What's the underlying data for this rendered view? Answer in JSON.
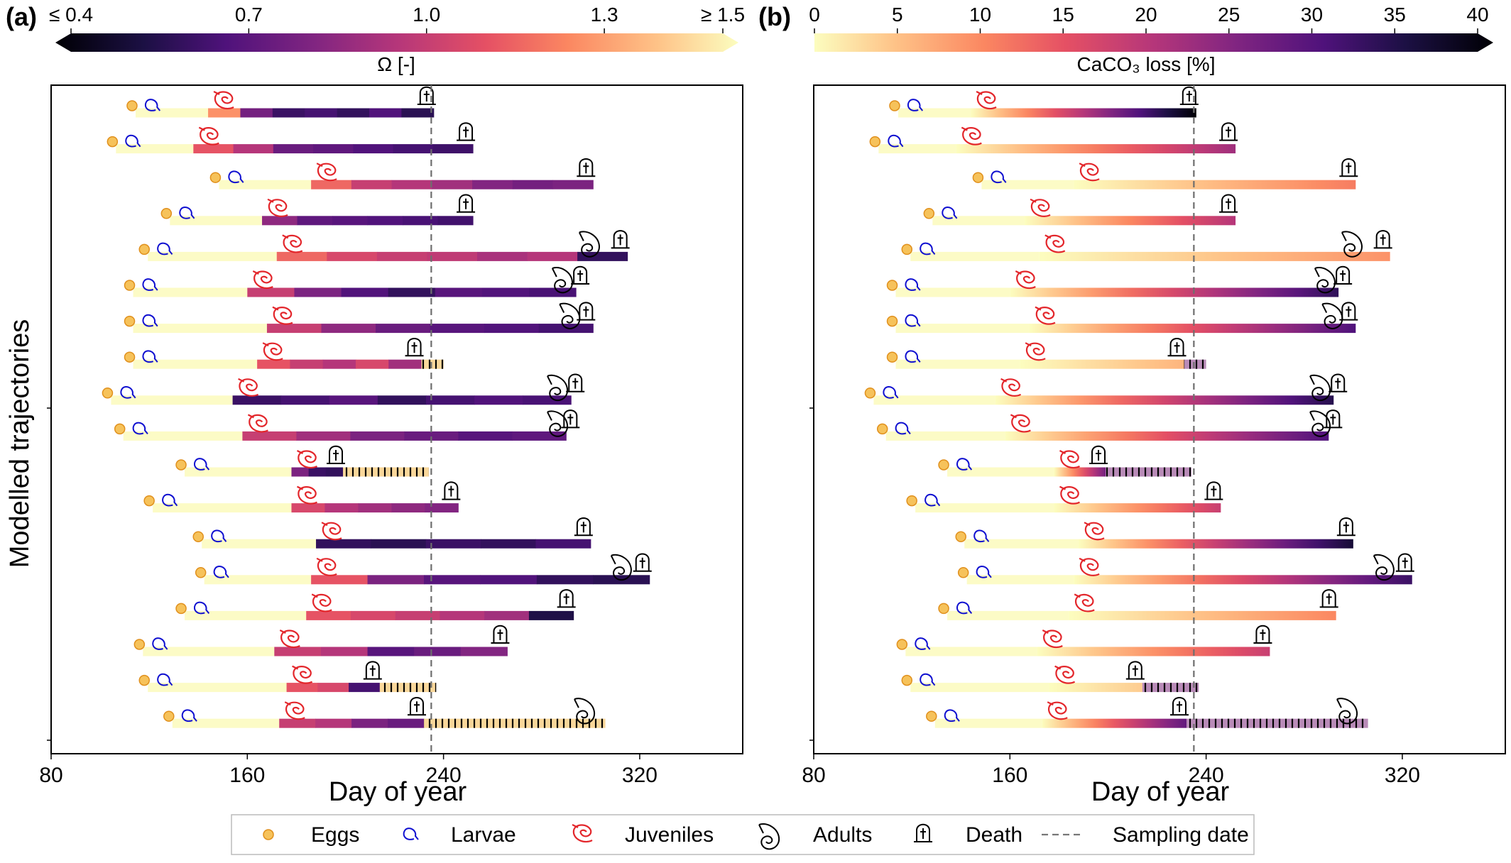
{
  "chart_data": [
    {
      "panel": "(a)",
      "type": "bar",
      "orientation": "horizontal",
      "title": "",
      "xlabel": "Day of year",
      "ylabel": "Modelled trajectories",
      "xlim": [
        80,
        362
      ],
      "xticks": [
        80,
        160,
        240,
        320
      ],
      "sampling_date": 235,
      "colorbar": {
        "label": "Ω [-]",
        "range": [
          0.4,
          1.5
        ],
        "ticks": [
          "≤ 0.4",
          "0.7",
          "1.0",
          "1.3",
          "≥ 1.5"
        ],
        "tick_values": [
          0.4,
          0.7,
          1.0,
          1.3,
          1.5
        ],
        "colormap": "magma",
        "extend": "both"
      },
      "trajectories": [
        {
          "egg": 113,
          "larva": 118,
          "juvenile": 144,
          "adult": null,
          "death": 236,
          "end": 236,
          "omega": [
            1.25,
            0.78,
            0.62,
            0.65,
            0.6,
            0.68,
            0.58
          ]
        },
        {
          "egg": 105,
          "larva": 110,
          "juvenile": 138,
          "adult": null,
          "death": 252,
          "end": 252,
          "omega": [
            1.1,
            0.95,
            0.75,
            0.72,
            0.68,
            0.65,
            0.63
          ]
        },
        {
          "egg": 147,
          "larva": 152,
          "juvenile": 186,
          "adult": null,
          "death": 301,
          "end": 301,
          "omega": [
            1.15,
            1.0,
            0.95,
            0.9,
            0.82,
            0.78,
            0.8
          ]
        },
        {
          "egg": 127,
          "larva": 132,
          "juvenile": 166,
          "adult": null,
          "death": 252,
          "end": 252,
          "omega": [
            0.85,
            0.72,
            0.7,
            0.68,
            0.66,
            0.64
          ]
        },
        {
          "egg": 118,
          "larva": 123,
          "juvenile": 172,
          "adult": 300,
          "death": 315,
          "end": 315,
          "omega": [
            1.15,
            1.05,
            1.0,
            0.98,
            0.92,
            0.95,
            0.6
          ]
        },
        {
          "egg": 112,
          "larva": 117,
          "juvenile": 160,
          "adult": 289,
          "death": 294,
          "end": 294,
          "omega": [
            1.0,
            0.8,
            0.68,
            0.6,
            0.7,
            0.68,
            0.66
          ]
        },
        {
          "egg": 112,
          "larva": 117,
          "juvenile": 168,
          "adult": 292,
          "death": 301,
          "end": 301,
          "omega": [
            1.0,
            0.85,
            0.75,
            0.7,
            0.68,
            0.65
          ]
        },
        {
          "egg": 112,
          "larva": 117,
          "juvenile": 164,
          "adult": null,
          "death": 231,
          "end": 240,
          "omega": [
            1.1,
            1.0,
            0.95,
            1.05,
            0.9
          ]
        },
        {
          "egg": 103,
          "larva": 108,
          "juvenile": 154,
          "adult": 287,
          "death": 292,
          "end": 292,
          "omega": [
            0.62,
            0.65,
            0.7,
            0.6,
            0.65,
            0.68,
            0.66
          ]
        },
        {
          "egg": 108,
          "larva": 113,
          "juvenile": 158,
          "adult": 287,
          "death": 290,
          "end": 290,
          "omega": [
            1.0,
            0.9,
            0.8,
            0.75,
            0.7,
            0.72
          ]
        },
        {
          "egg": 133,
          "larva": 138,
          "juvenile": 178,
          "adult": null,
          "death": 199,
          "end": 234,
          "omega": [
            0.8,
            0.62,
            0.6
          ]
        },
        {
          "egg": 120,
          "larva": 125,
          "juvenile": 178,
          "adult": null,
          "death": 246,
          "end": 246,
          "omega": [
            1.05,
            0.95,
            0.9,
            0.85,
            0.82
          ]
        },
        {
          "egg": 140,
          "larva": 145,
          "juvenile": 188,
          "adult": null,
          "death": 300,
          "end": 300,
          "omega": [
            0.6,
            0.58,
            0.62,
            0.6,
            0.65
          ]
        },
        {
          "egg": 141,
          "larva": 146,
          "juvenile": 186,
          "adult": 313,
          "death": 324,
          "end": 324,
          "omega": [
            1.1,
            0.8,
            0.7,
            0.68,
            0.6,
            0.58
          ]
        },
        {
          "egg": 133,
          "larva": 138,
          "juvenile": 184,
          "adult": null,
          "death": 293,
          "end": 293,
          "omega": [
            1.1,
            1.05,
            1.0,
            0.95,
            0.9,
            0.55
          ]
        },
        {
          "egg": 116,
          "larva": 121,
          "juvenile": 171,
          "adult": null,
          "death": 266,
          "end": 266,
          "omega": [
            1.0,
            0.95,
            0.7,
            0.75,
            0.82
          ]
        },
        {
          "egg": 118,
          "larva": 123,
          "juvenile": 176,
          "adult": null,
          "death": 214,
          "end": 237,
          "omega": [
            1.1,
            1.05,
            0.65
          ]
        },
        {
          "egg": 128,
          "larva": 133,
          "juvenile": 173,
          "adult": 298,
          "death": 232,
          "end": 306,
          "omega": [
            1.0,
            0.95,
            0.8,
            0.75
          ]
        }
      ]
    },
    {
      "panel": "(b)",
      "type": "bar",
      "orientation": "horizontal",
      "title": "",
      "xlabel": "Day of year",
      "ylabel": "",
      "xlim": [
        80,
        362
      ],
      "xticks": [
        80,
        160,
        240,
        320
      ],
      "sampling_date": 235,
      "colorbar": {
        "label": "CaCO₃ loss [%]",
        "range": [
          0,
          40
        ],
        "ticks": [
          "0",
          "5",
          "10",
          "15",
          "20",
          "25",
          "30",
          "35",
          "40"
        ],
        "tick_values": [
          0,
          5,
          10,
          15,
          20,
          25,
          30,
          35,
          40
        ],
        "colormap": "magma_r",
        "extend": "max"
      },
      "trajectories": [
        {
          "egg": 113,
          "larva": 118,
          "start_loss": 144,
          "death": 236,
          "end": 236,
          "final_loss": 40
        },
        {
          "egg": 105,
          "larva": 110,
          "start_loss": 138,
          "death": 252,
          "end": 252,
          "final_loss": 22
        },
        {
          "egg": 147,
          "larva": 152,
          "start_loss": 186,
          "death": 301,
          "end": 301,
          "final_loss": 11
        },
        {
          "egg": 127,
          "larva": 132,
          "start_loss": 166,
          "death": 252,
          "end": 252,
          "final_loss": 20
        },
        {
          "egg": 118,
          "larva": 123,
          "start_loss": 172,
          "adult": 300,
          "death": 315,
          "end": 315,
          "final_loss": 9
        },
        {
          "egg": 112,
          "larva": 117,
          "start_loss": 160,
          "adult": 289,
          "death": 294,
          "end": 294,
          "final_loss": 33
        },
        {
          "egg": 112,
          "larva": 117,
          "start_loss": 168,
          "adult": 292,
          "death": 301,
          "end": 301,
          "final_loss": 30
        },
        {
          "egg": 112,
          "larva": 117,
          "start_loss": 164,
          "death": 231,
          "end": 240,
          "final_loss": 6
        },
        {
          "egg": 103,
          "larva": 108,
          "start_loss": 154,
          "adult": 287,
          "death": 292,
          "end": 292,
          "final_loss": 34
        },
        {
          "egg": 108,
          "larva": 113,
          "start_loss": 158,
          "adult": 287,
          "death": 290,
          "end": 290,
          "final_loss": 30
        },
        {
          "egg": 133,
          "larva": 138,
          "start_loss": 178,
          "death": 199,
          "end": 234,
          "final_loss": 26
        },
        {
          "egg": 120,
          "larva": 125,
          "start_loss": 178,
          "death": 246,
          "end": 246,
          "final_loss": 18
        },
        {
          "egg": 140,
          "larva": 145,
          "start_loss": 188,
          "death": 300,
          "end": 300,
          "final_loss": 36
        },
        {
          "egg": 141,
          "larva": 146,
          "start_loss": 186,
          "adult": 313,
          "death": 324,
          "end": 324,
          "final_loss": 32
        },
        {
          "egg": 133,
          "larva": 138,
          "start_loss": 184,
          "death": 293,
          "end": 293,
          "final_loss": 10
        },
        {
          "egg": 116,
          "larva": 121,
          "start_loss": 171,
          "death": 266,
          "end": 266,
          "final_loss": 18
        },
        {
          "egg": 118,
          "larva": 123,
          "start_loss": 176,
          "death": 214,
          "end": 237,
          "final_loss": 4
        },
        {
          "egg": 128,
          "larva": 133,
          "start_loss": 173,
          "adult": 298,
          "death": 232,
          "end": 306,
          "final_loss": 28
        }
      ]
    }
  ],
  "legend": {
    "items": [
      {
        "label": "Eggs",
        "icon": "egg-icon",
        "color": "#f2a73a"
      },
      {
        "label": "Larvae",
        "icon": "larva-icon",
        "color": "#1010d0"
      },
      {
        "label": "Juveniles",
        "icon": "juvenile-icon",
        "color": "#e3262b"
      },
      {
        "label": "Adults",
        "icon": "adult-icon",
        "color": "#000000"
      },
      {
        "label": "Death",
        "icon": "tombstone-icon",
        "color": "#000000"
      },
      {
        "label": "Sampling date",
        "icon": "dashed-line-icon",
        "color": "#777777"
      }
    ]
  },
  "colors": {
    "early_stage": "#fcfbc6",
    "sampling_line": "#6e6e6e"
  }
}
